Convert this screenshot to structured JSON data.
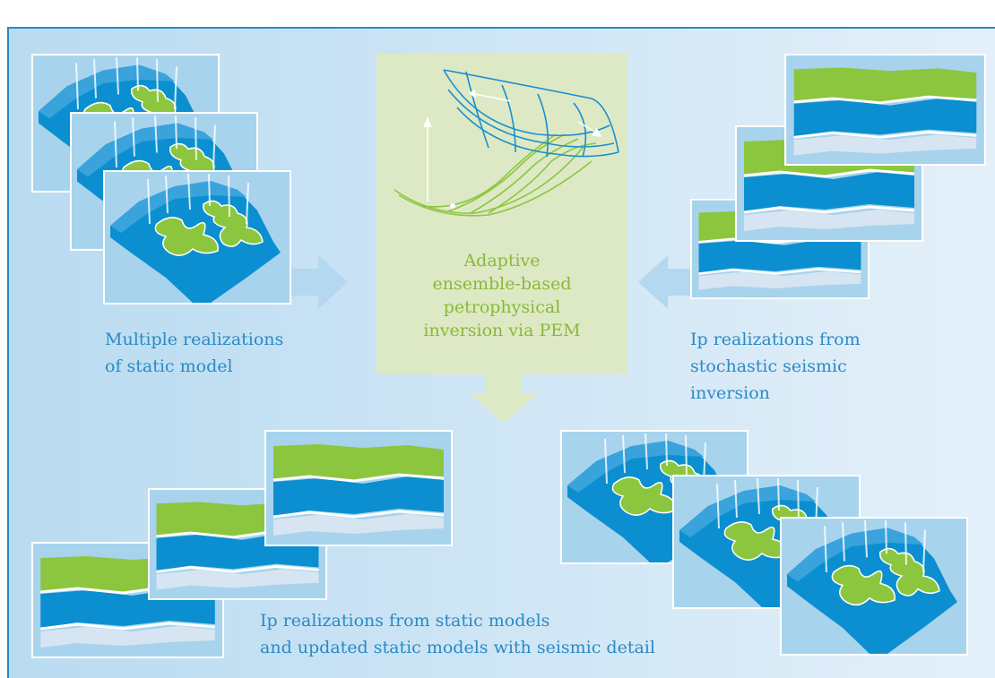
{
  "left_caption": {
    "lines": [
      "Multiple realizations",
      "of static model"
    ]
  },
  "center_box": {
    "lines": [
      "Adaptive",
      "ensemble-based",
      "petrophysical",
      "inversion via PEM"
    ]
  },
  "right_caption": {
    "lines": [
      "Ip realizations from",
      "stochastic seismic",
      "inversion"
    ]
  },
  "bottom_caption": {
    "lines": [
      "Ip realizations from static models",
      "and updated static models with seismic detail"
    ]
  }
}
